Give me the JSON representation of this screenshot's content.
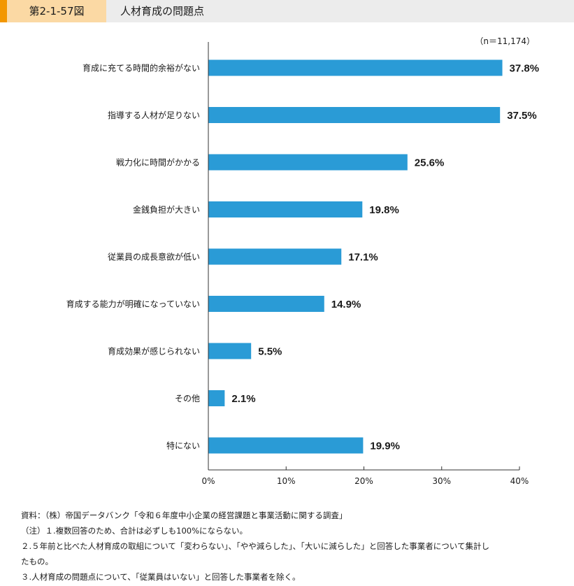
{
  "header": {
    "figure_label": "第2-1-57図",
    "title": "人材育成の問題点"
  },
  "sample_note": "（n＝11,174）",
  "colors": {
    "bar": "#2a9bd6",
    "accent": "#f39700",
    "label_bg": "#fbd9a4",
    "header_bg": "#ececec"
  },
  "chart_data": {
    "type": "bar",
    "orientation": "horizontal",
    "categories": [
      "育成に充てる時間的余裕がない",
      "指導する人材が足りない",
      "戦力化に時間がかかる",
      "金銭負担が大きい",
      "従業員の成長意欲が低い",
      "育成する能力が明確になっていない",
      "育成効果が感じられない",
      "その他",
      "特にない"
    ],
    "values": [
      37.8,
      37.5,
      25.6,
      19.8,
      17.1,
      14.9,
      5.5,
      2.1,
      19.9
    ],
    "value_labels": [
      "37.8%",
      "37.5%",
      "25.6%",
      "19.8%",
      "17.1%",
      "14.9%",
      "5.5%",
      "2.1%",
      "19.9%"
    ],
    "xlim": [
      0,
      40
    ],
    "xticks": [
      0,
      10,
      20,
      30,
      40
    ],
    "xtick_labels": [
      "0%",
      "10%",
      "20%",
      "30%",
      "40%"
    ],
    "grid": false,
    "legend": "none"
  },
  "notes": [
    "資料：（株）帝国データバンク「令和６年度中小企業の経営課題と事業活動に関する調査」",
    "（注）１.複数回答のため、合計は必ずしも100%にならない。",
    "２.５年前と比べた人材育成の取組について「変わらない」、「やや減らした」、「大いに減らした」と回答した事業者について集計し",
    "たもの。",
    "３.人材育成の問題点について、「従業員はいない」と回答した事業者を除く。"
  ]
}
